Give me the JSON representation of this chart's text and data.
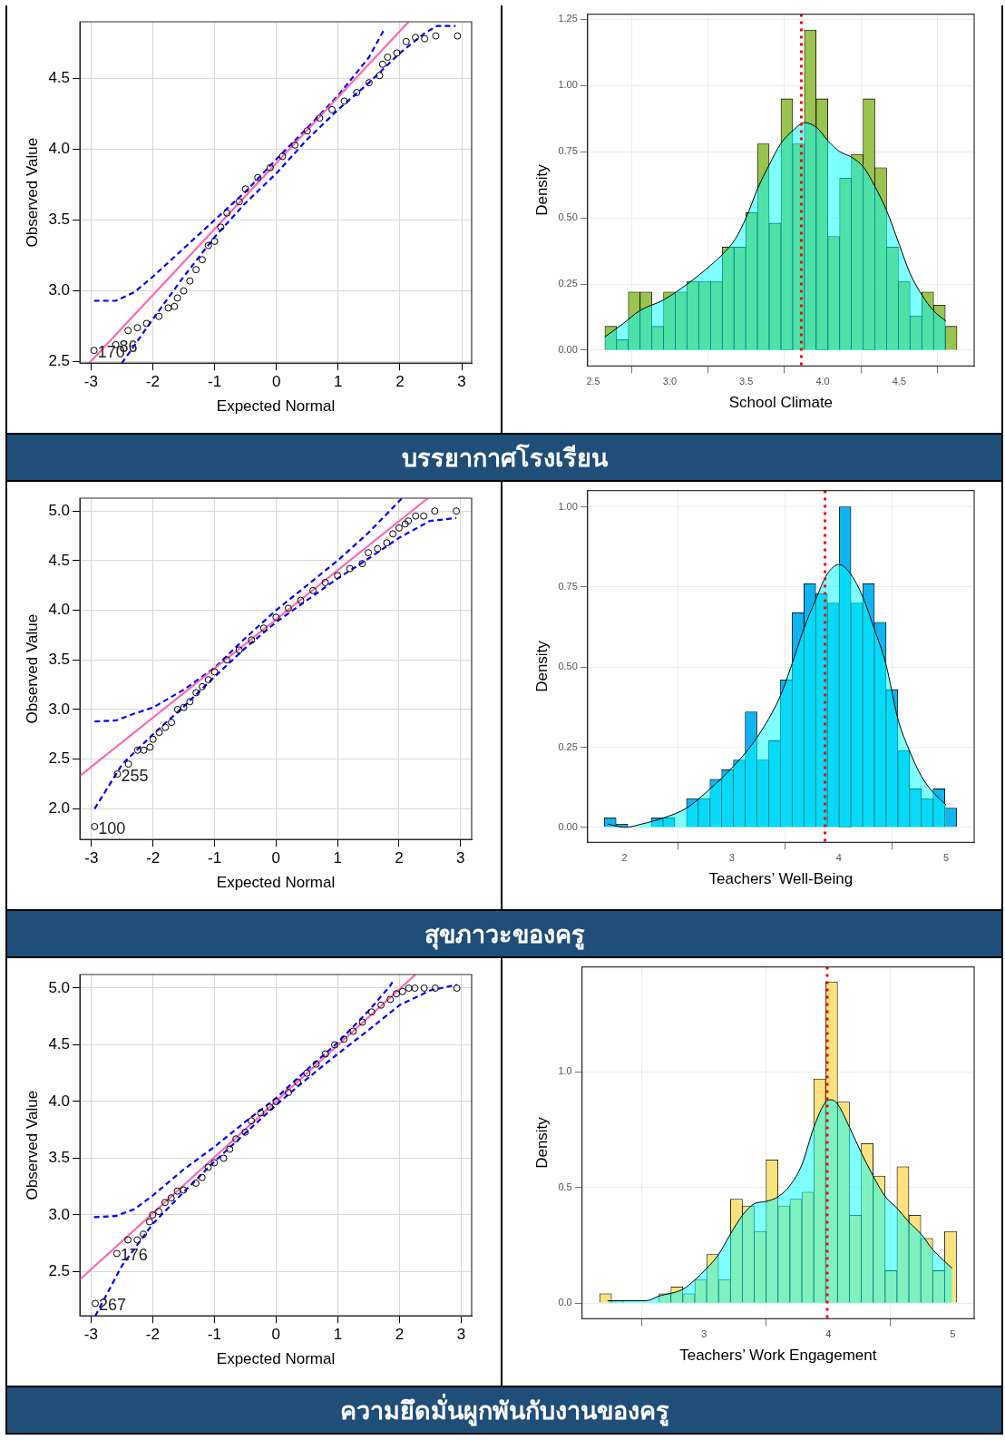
{
  "chart_data": [
    {
      "type": "scatter",
      "xlabel": "Expected Normal",
      "ylabel": "Observed Value",
      "xlim": [
        -3.18,
        3.16
      ],
      "ylim": [
        2.49,
        4.9
      ],
      "xticks": [
        -3,
        -2,
        -1,
        0,
        1,
        2,
        3
      ],
      "yticks": [
        2.5,
        {
          "value": 3,
          "label": "3.0"
        },
        3.5,
        {
          "value": 4,
          "label": "4.0"
        },
        4.5
      ],
      "grid": true,
      "series": [
        {
          "type": "scatter",
          "marker": "circle",
          "color": "#000000",
          "x": [
            -2.95,
            -2.6,
            -2.4,
            -2.25,
            -2.1,
            -1.9,
            -1.75,
            -1.65,
            -1.6,
            -1.5,
            -1.4,
            -1.3,
            -1.2,
            -1.1,
            -1.0,
            -0.9,
            -0.8,
            -0.6,
            -0.5,
            -0.3,
            -0.1,
            0.1,
            0.3,
            0.5,
            0.7,
            0.9,
            1.1,
            1.3,
            1.5,
            1.67,
            1.72,
            1.8,
            1.95,
            2.1,
            2.25,
            2.4,
            2.58,
            2.93
          ],
          "values": [
            2.58,
            2.62,
            2.72,
            2.74,
            2.77,
            2.82,
            2.88,
            2.89,
            2.95,
            3.0,
            3.07,
            3.15,
            3.22,
            3.32,
            3.35,
            3.45,
            3.55,
            3.63,
            3.72,
            3.8,
            3.87,
            3.95,
            4.03,
            4.13,
            4.22,
            4.28,
            4.34,
            4.4,
            4.47,
            4.52,
            4.6,
            4.65,
            4.68,
            4.76,
            4.79,
            4.78,
            4.8,
            4.8
          ]
        },
        {
          "type": "line",
          "color": "#ff69b4",
          "line_style": "solid",
          "x": [
            -3.03,
            2.14
          ],
          "values": [
            2.49,
            4.9
          ]
        },
        {
          "type": "line",
          "color": "#0000ff",
          "line_style": "dashed",
          "x": [
            -2.95,
            -2.6,
            -2.3,
            -2,
            -1.5,
            -1,
            -0.5,
            0,
            0.5,
            1,
            1.5,
            1.75
          ],
          "values": [
            2.93,
            2.93,
            2.99,
            3.1,
            3.3,
            3.5,
            3.7,
            3.93,
            4.15,
            4.38,
            4.65,
            4.85
          ]
        },
        {
          "type": "line",
          "color": "#0000ff",
          "line_style": "dashed",
          "x": [
            -2.5,
            -2,
            -1.5,
            -1,
            -0.5,
            0,
            0.5,
            1,
            1.5,
            2,
            2.4,
            2.6,
            2.9
          ],
          "values": [
            2.49,
            2.8,
            3.1,
            3.38,
            3.62,
            3.83,
            4.07,
            4.28,
            4.47,
            4.68,
            4.82,
            4.87,
            4.87
          ]
        }
      ],
      "annotations": [
        {
          "text": "170",
          "x": -2.95,
          "y": 2.58
        },
        {
          "text": "86",
          "x": -2.6,
          "y": 2.62
        }
      ]
    },
    {
      "type": "histogram",
      "xlabel": "School Climate",
      "ylabel": "Density",
      "xlim": [
        2.463,
        4.99
      ],
      "ylim": [
        -0.06,
        1.27
      ],
      "xticks": [
        2.5,
        {
          "value": 3,
          "label": "3.0"
        },
        3.5,
        {
          "value": 4,
          "label": "4.0"
        },
        4.5
      ],
      "yticks": [
        {
          "value": 0,
          "label": "0.00"
        },
        0.25,
        {
          "value": 0.5,
          "label": "0.50"
        },
        0.75,
        {
          "value": 1,
          "label": "1.00"
        },
        1.25
      ],
      "grid": true,
      "color": "#9bc34f",
      "bins": [
        2.576,
        2.653,
        2.729,
        2.806,
        2.883,
        2.96,
        3.036,
        3.113,
        3.19,
        3.267,
        3.343,
        3.42,
        3.497,
        3.573,
        3.65,
        3.727,
        3.804,
        3.88,
        3.957,
        4.034,
        4.111,
        4.187,
        4.264,
        4.341,
        4.418,
        4.494,
        4.571,
        4.648,
        4.725,
        4.801,
        4.878
      ],
      "values": [
        0.09,
        0.04,
        0.22,
        0.22,
        0.09,
        0.22,
        0.22,
        0.26,
        0.26,
        0.26,
        0.39,
        0.39,
        0.52,
        0.78,
        0.48,
        0.95,
        0.78,
        1.21,
        0.95,
        0.43,
        0.65,
        0.74,
        0.95,
        0.69,
        0.39,
        0.26,
        0.13,
        0.22,
        0.17,
        0.09
      ],
      "series": [
        {
          "type": "area",
          "color": "#00ffff",
          "x": [
            2.576,
            2.694,
            2.806,
            2.96,
            3.115,
            3.266,
            3.341,
            3.428,
            3.499,
            3.574,
            3.65,
            3.725,
            3.805,
            3.881,
            3.963,
            4.036,
            4.112,
            4.187,
            4.269,
            4.34,
            4.416,
            4.5,
            4.571,
            4.647,
            4.723,
            4.805
          ],
          "values": [
            0.05,
            0.1,
            0.15,
            0.19,
            0.25,
            0.32,
            0.36,
            0.42,
            0.5,
            0.61,
            0.7,
            0.78,
            0.83,
            0.86,
            0.84,
            0.79,
            0.75,
            0.73,
            0.69,
            0.62,
            0.53,
            0.4,
            0.29,
            0.21,
            0.15,
            0.11
          ]
        }
      ],
      "ref_lines": [
        {
          "axis": "x",
          "value": 3.86,
          "color": "#ff0000",
          "line_style": "dotted"
        }
      ]
    },
    {
      "type": "other",
      "title": "บรรยากาศโรงเรียน"
    },
    {
      "type": "scatter",
      "xlabel": "Expected Normal",
      "ylabel": "Observed Value",
      "xlim": [
        -3.19,
        3.18
      ],
      "ylim": [
        1.69,
        5.13
      ],
      "xticks": [
        -3,
        -2,
        -1,
        0,
        1,
        2,
        3
      ],
      "yticks": [
        {
          "value": 2,
          "label": "2.0"
        },
        2.5,
        {
          "value": 3,
          "label": "3.0"
        },
        3.5,
        {
          "value": 4,
          "label": "4.0"
        },
        4.5,
        {
          "value": 5,
          "label": "5.0"
        }
      ],
      "grid": true,
      "series": [
        {
          "type": "scatter",
          "marker": "circle",
          "color": "#000000",
          "x": [
            -2.95,
            -2.58,
            -2.4,
            -2.25,
            -2.15,
            -2.05,
            -2,
            -1.9,
            -1.8,
            -1.7,
            -1.6,
            -1.5,
            -1.4,
            -1.3,
            -1.2,
            -1.1,
            -1.0,
            -0.8,
            -0.6,
            -0.4,
            -0.2,
            0,
            0.2,
            0.4,
            0.6,
            0.8,
            1.0,
            1.2,
            1.4,
            1.5,
            1.65,
            1.8,
            1.9,
            2.0,
            2.1,
            2.15,
            2.27,
            2.4,
            2.58,
            2.93
          ],
          "values": [
            1.82,
            2.35,
            2.45,
            2.59,
            2.59,
            2.62,
            2.7,
            2.77,
            2.82,
            2.87,
            3.0,
            3.02,
            3.08,
            3.17,
            3.23,
            3.3,
            3.38,
            3.5,
            3.6,
            3.7,
            3.82,
            3.93,
            4.02,
            4.1,
            4.2,
            4.28,
            4.35,
            4.42,
            4.47,
            4.58,
            4.62,
            4.68,
            4.77,
            4.83,
            4.87,
            4.9,
            4.95,
            4.95,
            5.0,
            5.0
          ]
        },
        {
          "type": "line",
          "color": "#ff69b4",
          "line_style": "solid",
          "x": [
            -3.19,
            2.47
          ],
          "values": [
            2.33,
            5.13
          ]
        },
        {
          "type": "line",
          "color": "#0000ff",
          "line_style": "dashed",
          "x": [
            -2.95,
            -2.6,
            -2.3,
            -2,
            -1.5,
            -1,
            -0.5,
            0,
            0.5,
            1,
            1.5,
            2.05
          ],
          "values": [
            2.88,
            2.89,
            2.96,
            3.02,
            3.2,
            3.42,
            3.72,
            4.0,
            4.25,
            4.5,
            4.78,
            5.13
          ]
        },
        {
          "type": "line",
          "color": "#0000ff",
          "line_style": "dashed",
          "x": [
            -2.95,
            -2.5,
            -2,
            -1.5,
            -1,
            -0.5,
            0,
            0.5,
            1,
            1.5,
            2,
            2.5,
            2.93
          ],
          "values": [
            2.0,
            2.45,
            2.75,
            3.03,
            3.33,
            3.62,
            3.88,
            4.1,
            4.32,
            4.52,
            4.73,
            4.9,
            4.93
          ]
        }
      ],
      "annotations": [
        {
          "text": "255",
          "x": -2.58,
          "y": 2.35
        },
        {
          "text": "100",
          "x": -2.95,
          "y": 1.82
        }
      ]
    },
    {
      "type": "histogram",
      "xlabel": "Teachers’ Well-Being",
      "ylabel": "Density",
      "xlim": [
        1.654,
        5.262
      ],
      "ylim": [
        -0.047,
        1.051
      ],
      "xticks": [
        2,
        3,
        4,
        5
      ],
      "yticks": [
        {
          "value": 0,
          "label": "0.00"
        },
        0.25,
        {
          "value": 0.5,
          "label": "0.50"
        },
        0.75,
        {
          "value": 1,
          "label": "1.00"
        }
      ],
      "grid": true,
      "color": "#0fb4f0",
      "bins": [
        1.81,
        1.92,
        2.029,
        2.139,
        2.248,
        2.358,
        2.468,
        2.577,
        2.687,
        2.796,
        2.906,
        3.016,
        3.125,
        3.235,
        3.344,
        3.454,
        3.564,
        3.673,
        3.783,
        3.892,
        4.002,
        4.112,
        4.221,
        4.331,
        4.44,
        4.55,
        4.66,
        4.769,
        4.879,
        4.988,
        5.098
      ],
      "values": [
        0.03,
        0.01,
        0,
        0,
        0.03,
        0.03,
        0,
        0.09,
        0.09,
        0.15,
        0.18,
        0.21,
        0.36,
        0.21,
        0.27,
        0.46,
        0.67,
        0.76,
        0.73,
        0.7,
        1.0,
        0.7,
        0.76,
        0.64,
        0.43,
        0.24,
        0.12,
        0.09,
        0.12,
        0.06
      ],
      "series": [
        {
          "type": "area",
          "color": "#00ffff",
          "x": [
            1.842,
            2.006,
            2.156,
            2.367,
            2.577,
            2.797,
            3.014,
            3.234,
            3.453,
            3.562,
            3.673,
            3.782,
            3.89,
            4.001,
            4.11,
            4.221,
            4.329,
            4.438,
            4.549,
            4.657,
            4.769,
            4.877,
            5.0
          ],
          "values": [
            0.01,
            0.0,
            0.01,
            0.03,
            0.06,
            0.12,
            0.19,
            0.28,
            0.41,
            0.51,
            0.62,
            0.71,
            0.79,
            0.82,
            0.79,
            0.72,
            0.62,
            0.51,
            0.34,
            0.24,
            0.16,
            0.11,
            0.07
          ]
        }
      ],
      "ref_lines": [
        {
          "axis": "x",
          "value": 3.87,
          "color": "#ff0000",
          "line_style": "dotted"
        }
      ]
    },
    {
      "type": "other",
      "title": "สุขภาวะของครู"
    },
    {
      "type": "scatter",
      "xlabel": "Expected Normal",
      "ylabel": "Observed Value",
      "xlim": [
        -3.18,
        3.17
      ],
      "ylim": [
        2.11,
        5.12
      ],
      "xticks": [
        -3,
        -2,
        -1,
        0,
        1,
        2,
        3
      ],
      "yticks": [
        2.5,
        {
          "value": 3,
          "label": "3.0"
        },
        3.5,
        {
          "value": 4,
          "label": "4.0"
        },
        4.5,
        {
          "value": 5,
          "label": "5.0"
        }
      ],
      "grid": true,
      "series": [
        {
          "type": "scatter",
          "marker": "circle",
          "color": "#000000",
          "x": [
            -2.93,
            -2.58,
            -2.4,
            -2.25,
            -2.15,
            -2.05,
            -2.0,
            -1.9,
            -1.8,
            -1.7,
            -1.6,
            -1.5,
            -1.3,
            -1.2,
            -1.1,
            -1.0,
            -0.85,
            -0.75,
            -0.65,
            -0.5,
            -0.4,
            -0.25,
            -0.1,
            0,
            0.2,
            0.35,
            0.5,
            0.65,
            0.8,
            0.95,
            1.1,
            1.25,
            1.4,
            1.55,
            1.7,
            1.85,
            1.95,
            2.05,
            2.15,
            2.25,
            2.4,
            2.58,
            2.93
          ],
          "values": [
            2.22,
            2.66,
            2.78,
            2.78,
            2.83,
            2.94,
            3.0,
            3.03,
            3.11,
            3.15,
            3.21,
            3.22,
            3.28,
            3.33,
            3.42,
            3.46,
            3.5,
            3.58,
            3.67,
            3.73,
            3.83,
            3.9,
            3.95,
            4.0,
            4.08,
            4.17,
            4.25,
            4.33,
            4.42,
            4.5,
            4.55,
            4.62,
            4.7,
            4.79,
            4.85,
            4.9,
            4.95,
            4.97,
            5.0,
            5.0,
            5.0,
            5.0,
            5.0
          ]
        },
        {
          "type": "line",
          "color": "#ff69b4",
          "line_style": "solid",
          "x": [
            -3.18,
            2.26
          ],
          "values": [
            2.43,
            5.12
          ]
        },
        {
          "type": "line",
          "color": "#0000ff",
          "line_style": "dashed",
          "x": [
            -2.95,
            -2.6,
            -2.3,
            -2,
            -1.5,
            -1,
            -0.5,
            0,
            0.5,
            1,
            1.5,
            1.85,
            1.9
          ],
          "values": [
            2.98,
            2.99,
            3.05,
            3.17,
            3.4,
            3.6,
            3.82,
            4.03,
            4.28,
            4.52,
            4.8,
            5.02,
            5.07
          ]
        },
        {
          "type": "line",
          "color": "#0000ff",
          "line_style": "dashed",
          "x": [
            -2.93,
            -2.5,
            -2,
            -1.5,
            -1,
            -0.5,
            0,
            0.5,
            1,
            1.5,
            2,
            2.5,
            2.93
          ],
          "values": [
            2.11,
            2.55,
            2.92,
            3.2,
            3.47,
            3.72,
            3.97,
            4.2,
            4.42,
            4.63,
            4.85,
            4.98,
            5.03
          ]
        }
      ],
      "annotations": [
        {
          "text": "176",
          "x": -2.58,
          "y": 2.66
        },
        {
          "text": "267",
          "x": -2.93,
          "y": 2.22
        }
      ]
    },
    {
      "type": "histogram",
      "xlabel": "Teachers’ Work Engagement",
      "ylabel": "Density",
      "xlim": [
        2.018,
        5.172
      ],
      "ylim": [
        -0.068,
        1.455
      ],
      "xticks": [
        3,
        4,
        5
      ],
      "yticks": [
        {
          "value": 0,
          "label": "0.0"
        },
        0.5,
        {
          "value": 1,
          "label": "1.0"
        }
      ],
      "grid": true,
      "color": "#fce27f",
      "bins": [
        2.159,
        2.255,
        2.35,
        2.446,
        2.542,
        2.637,
        2.733,
        2.829,
        2.925,
        3.02,
        3.116,
        3.212,
        3.307,
        3.403,
        3.499,
        3.594,
        3.69,
        3.786,
        3.882,
        3.977,
        4.073,
        4.169,
        4.264,
        4.36,
        4.456,
        4.551,
        4.647,
        4.743,
        4.839,
        4.934,
        5.03
      ],
      "values": [
        0.04,
        0.01,
        0,
        0,
        0,
        0.04,
        0.07,
        0.04,
        0.1,
        0.21,
        0.1,
        0.45,
        0.42,
        0.31,
        0.62,
        0.42,
        0.45,
        0.48,
        0.97,
        1.39,
        0.87,
        0.38,
        0.69,
        0.55,
        0.14,
        0.59,
        0.38,
        0.28,
        0.14,
        0.31
      ],
      "series": [
        {
          "type": "area",
          "color": "#00ffff",
          "x": [
            2.224,
            2.429,
            2.532,
            2.635,
            2.83,
            2.925,
            3.021,
            3.116,
            3.213,
            3.308,
            3.404,
            3.499,
            3.594,
            3.692,
            3.787,
            3.882,
            3.977,
            4.023,
            4.075,
            4.17,
            4.265,
            4.36,
            4.458,
            4.553,
            4.648,
            4.743,
            4.841,
            4.936,
            4.995
          ],
          "values": [
            0.01,
            0.01,
            0.01,
            0.03,
            0.06,
            0.1,
            0.15,
            0.21,
            0.3,
            0.38,
            0.43,
            0.44,
            0.46,
            0.51,
            0.6,
            0.76,
            0.87,
            0.88,
            0.86,
            0.76,
            0.65,
            0.55,
            0.46,
            0.41,
            0.35,
            0.3,
            0.23,
            0.18,
            0.15
          ]
        }
      ],
      "ref_lines": [
        {
          "axis": "x",
          "value": 3.99,
          "color": "#ff0000",
          "line_style": "dotted"
        }
      ]
    },
    {
      "type": "other",
      "title": "ความยึดมั่นผูกพันกับงานของครู"
    }
  ]
}
